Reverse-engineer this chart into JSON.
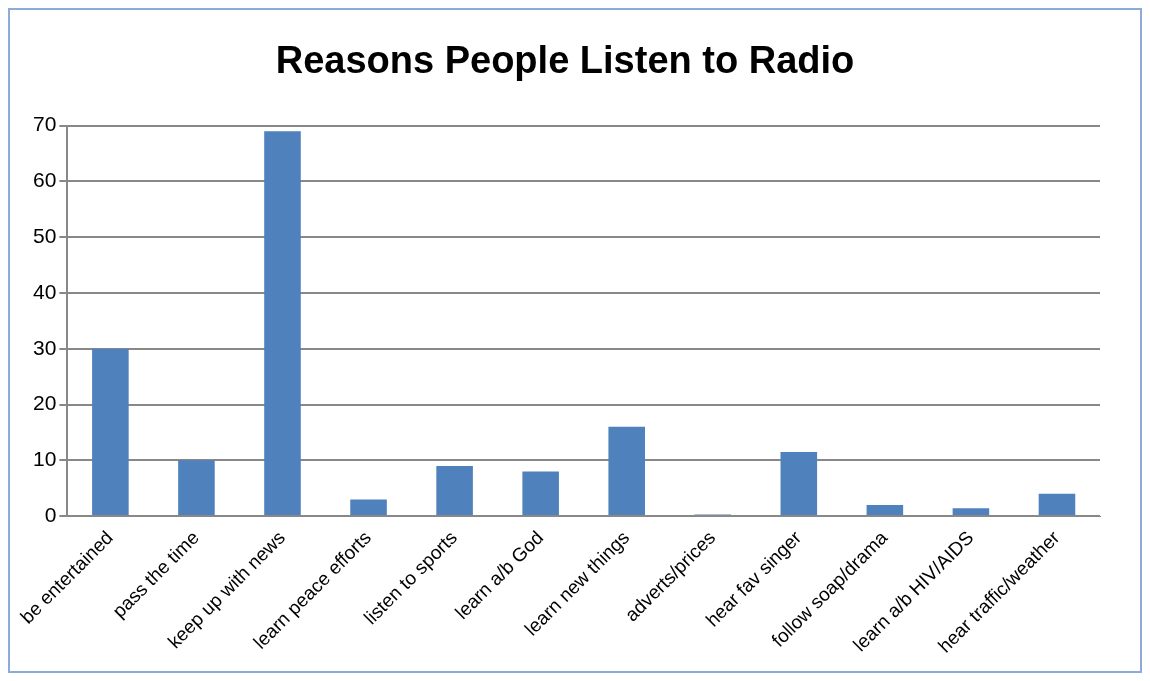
{
  "chart_data": {
    "type": "bar",
    "title": "Reasons People Listen to Radio",
    "categories": [
      "be entertained",
      "pass the time",
      "keep up with news",
      "learn peace efforts",
      "listen to sports",
      "learn a/b God",
      "learn new things",
      "adverts/prices",
      "hear fav singer",
      "follow soap/drama",
      "learn a/b HIV/AIDS",
      "hear traffic/weather"
    ],
    "values": [
      30,
      10,
      69,
      3,
      9,
      8,
      16,
      0.3,
      11.5,
      2,
      1.4,
      4
    ],
    "color": "#4f81bd",
    "ylim": [
      0,
      70
    ],
    "yticks": [
      0,
      10,
      20,
      30,
      40,
      50,
      60,
      70
    ],
    "grid": "y",
    "legend": false
  }
}
